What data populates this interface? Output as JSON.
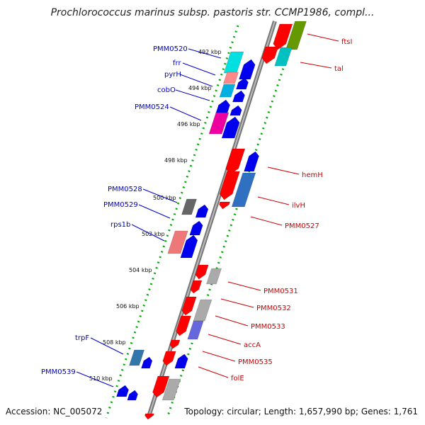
{
  "title": "Prochlorococcus marinus subsp. pastoris str. CCMP1986, compl...",
  "footer": {
    "accession": "Accession: NC_005072",
    "topology": "Topology: circular; Length: 1,657,990 bp; Genes: 1,761"
  },
  "colors": {
    "backbone": "#808080",
    "ruler": "#00aa00",
    "left_label": "#0000cc",
    "right_label": "#cc0000"
  },
  "ticks": [
    "492 kbp",
    "494 kbp",
    "496 kbp",
    "498 kbp",
    "500 kbp",
    "502 kbp",
    "504 kbp",
    "506 kbp",
    "508 kbp",
    "510 kbp"
  ],
  "left_genes": [
    "PMM0520",
    "frr",
    "pyrH",
    "cobO",
    "PMM0524",
    "PMM0528",
    "PMM0529",
    "rps1b",
    "trpF",
    "PMM0539"
  ],
  "right_genes": [
    "ftsI",
    "tal",
    "hemH",
    "ilvH",
    "PMM0527",
    "PMM0531",
    "PMM0532",
    "PMM0533",
    "accA",
    "PMM0535",
    "folE"
  ]
}
